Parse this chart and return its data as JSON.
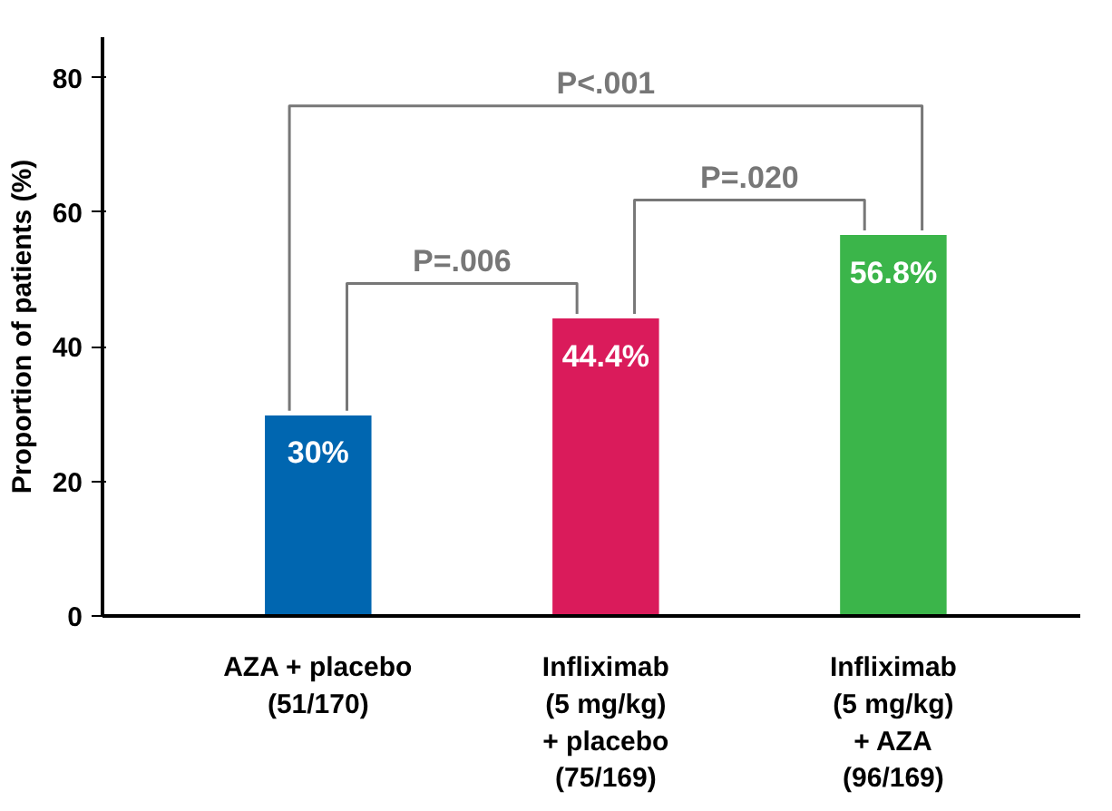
{
  "chart_data": {
    "type": "bar",
    "ylabel": "Proportion of patients (%)",
    "categories": [
      "AZA + placebo\n(51/170)",
      "Infliximab\n(5 mg/kg)\n+ placebo\n(75/169)",
      "Infliximab\n(5 mg/kg)\n+ AZA\n(96/169)"
    ],
    "values": [
      30,
      44.4,
      56.8
    ],
    "colors": [
      "#0066b0",
      "#da1b5b",
      "#3bb54a"
    ],
    "value_labels": [
      "30%",
      "44.4%",
      "56.8%"
    ],
    "ylim": [
      0,
      86
    ],
    "yticks": [
      0,
      20,
      40,
      60,
      80
    ],
    "grid": false,
    "annotations": [
      "P=.006",
      "P=.020",
      "P<.001"
    ]
  }
}
